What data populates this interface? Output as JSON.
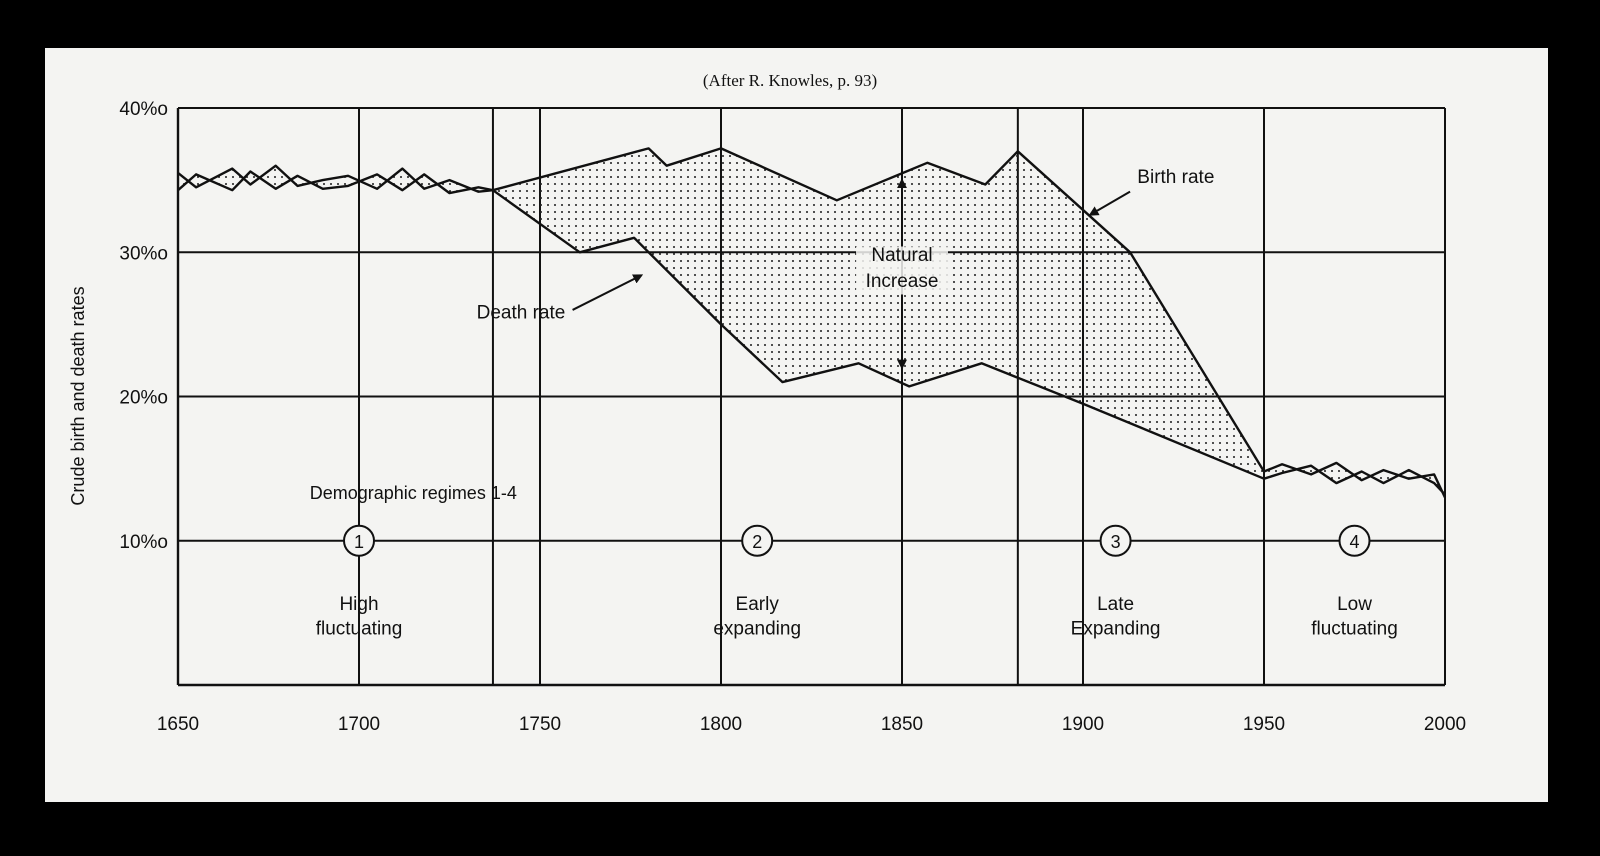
{
  "caption": "(After R. Knowles, p. 93)",
  "chart_data": {
    "type": "line",
    "title": "",
    "xlabel": "",
    "ylabel": "Crude birth and death rates",
    "xlim": [
      1650,
      2000
    ],
    "ylim": [
      0,
      40
    ],
    "x_ticks": [
      1650,
      1700,
      1750,
      1800,
      1850,
      1900,
      1950,
      2000
    ],
    "x_tick_labels": [
      "1650",
      "1700",
      "1750",
      "1800",
      "1850",
      "1900",
      "1950",
      "2000"
    ],
    "y_ticks": [
      10,
      20,
      30,
      40
    ],
    "y_tick_labels": [
      "10%o",
      "20%o",
      "30%o",
      "40%o"
    ],
    "grid": "horizontal at each y tick; vertical lines at regime boundaries",
    "series": [
      {
        "name": "Birth rate",
        "x": [
          1650,
          1655,
          1665,
          1670,
          1677,
          1683,
          1690,
          1697,
          1705,
          1712,
          1718,
          1725,
          1733,
          1737,
          1780,
          1785,
          1800,
          1832,
          1857,
          1873,
          1882,
          1913,
          1950,
          1955,
          1963,
          1970,
          1977,
          1983,
          1990,
          1997,
          2000
        ],
        "y": [
          35.5,
          34.5,
          35.8,
          34.7,
          36.0,
          34.6,
          35.0,
          35.3,
          34.4,
          35.8,
          34.4,
          35.0,
          34.2,
          34.3,
          37.2,
          36.0,
          37.2,
          33.6,
          36.2,
          34.7,
          37.0,
          30.0,
          14.8,
          15.3,
          14.6,
          15.4,
          14.2,
          14.9,
          14.3,
          14.6,
          13.0
        ]
      },
      {
        "name": "Death rate",
        "x": [
          1650,
          1655,
          1665,
          1670,
          1677,
          1683,
          1690,
          1697,
          1705,
          1712,
          1718,
          1725,
          1733,
          1737,
          1761,
          1776,
          1800,
          1817,
          1838,
          1852,
          1872,
          1900,
          1950,
          1955,
          1963,
          1970,
          1977,
          1983,
          1990,
          1997,
          2000
        ],
        "y": [
          34.3,
          35.4,
          34.3,
          35.6,
          34.4,
          35.3,
          34.4,
          34.6,
          35.4,
          34.3,
          35.4,
          34.1,
          34.5,
          34.3,
          30.0,
          31.0,
          25.0,
          21.0,
          22.3,
          20.7,
          22.3,
          19.5,
          14.3,
          14.7,
          15.2,
          14.0,
          14.8,
          14.0,
          14.9,
          14.0,
          13.2
        ]
      }
    ],
    "regime_boundaries": [
      1737,
      1882,
      1950
    ],
    "inner_verticals": [
      1700,
      1750,
      1800,
      1850,
      1900
    ],
    "regimes_label": "Demographic regimes 1-4",
    "regimes": [
      {
        "number": "1",
        "x": 1700,
        "label_line1": "High",
        "label_line2": "fluctuating"
      },
      {
        "number": "2",
        "x": 1810,
        "label_line1": "Early",
        "label_line2": "expanding"
      },
      {
        "number": "3",
        "x": 1909,
        "label_line1": "Late",
        "label_line2": "Expanding"
      },
      {
        "number": "4",
        "x": 1975,
        "label_line1": "Low",
        "label_line2": "fluctuating"
      }
    ],
    "annotations": [
      {
        "text_line1": "Natural",
        "text_line2": "Increase",
        "x": 1850,
        "y": 28.6
      },
      {
        "text": "Birth rate",
        "x": 1915,
        "y": 34.8
      },
      {
        "text": "Death rate",
        "x": 1757,
        "y": 25.4
      }
    ]
  }
}
